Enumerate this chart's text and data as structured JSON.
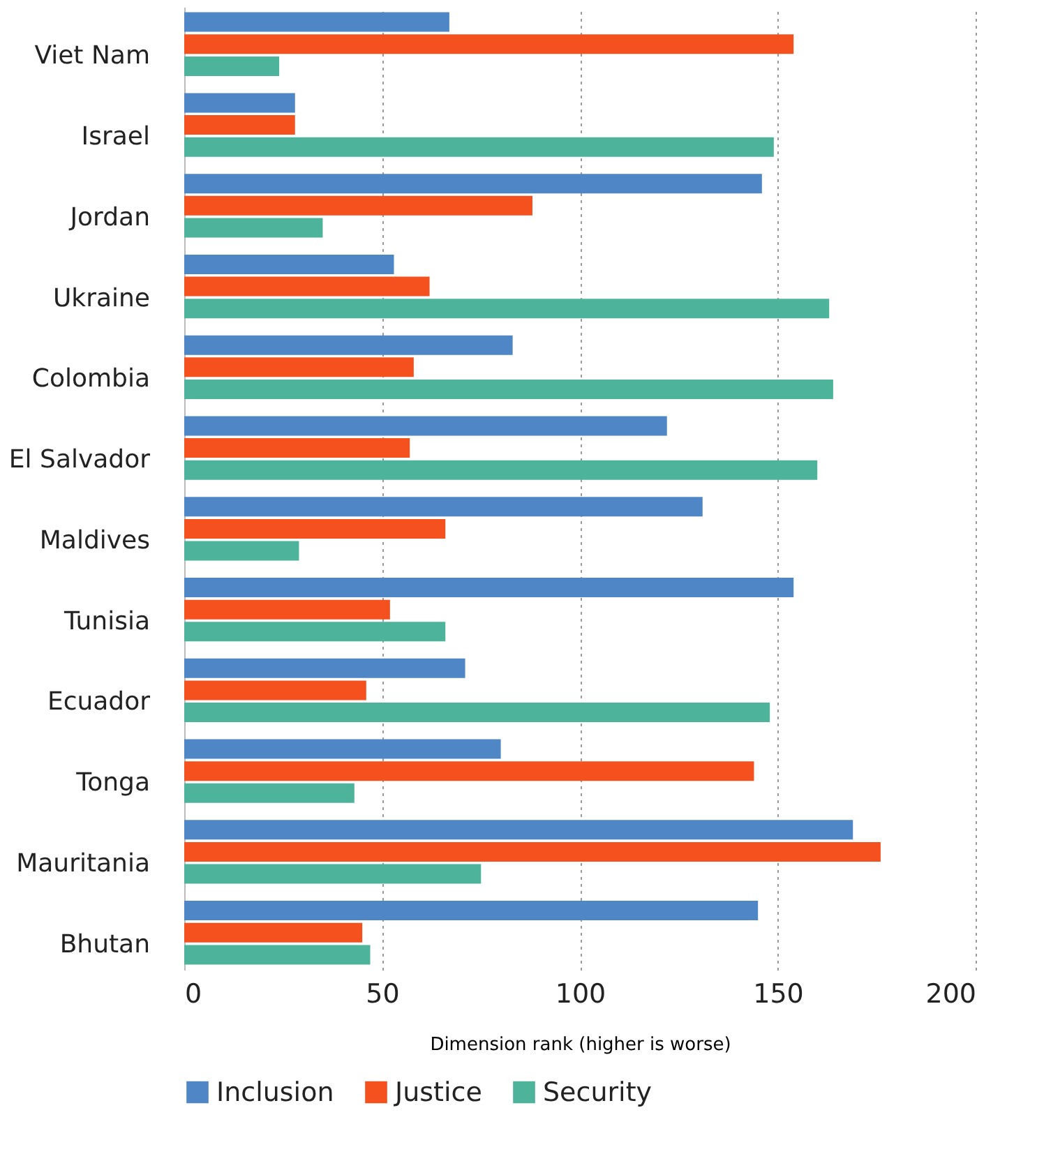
{
  "chart_data": {
    "type": "bar",
    "orientation": "horizontal",
    "xlabel": "Dimension rank (higher is worse)",
    "categories": [
      "Viet Nam",
      "Israel",
      "Jordan",
      "Ukraine",
      "Colombia",
      "El Salvador",
      "Maldives",
      "Tunisia",
      "Ecuador",
      "Tonga",
      "Mauritania",
      "Bhutan"
    ],
    "series": [
      {
        "name": "Inclusion",
        "color": "#4f86c6",
        "values": [
          67,
          28,
          146,
          53,
          83,
          122,
          131,
          154,
          71,
          80,
          169,
          145
        ]
      },
      {
        "name": "Justice",
        "color": "#f4511e",
        "values": [
          154,
          28,
          88,
          62,
          58,
          57,
          66,
          52,
          46,
          144,
          176,
          45
        ]
      },
      {
        "name": "Security",
        "color": "#4db39a",
        "values": [
          24,
          149,
          35,
          163,
          164,
          160,
          29,
          66,
          148,
          43,
          75,
          47
        ]
      }
    ],
    "xlim": [
      0,
      200
    ],
    "xticks": [
      0,
      50,
      100,
      150,
      200
    ],
    "grid": "x",
    "legend": "bottom left"
  }
}
